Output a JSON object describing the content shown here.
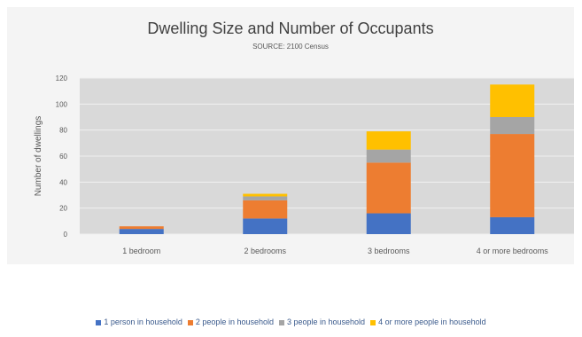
{
  "chart_data": {
    "type": "bar",
    "stacked": true,
    "title": "Dwelling Size and Number of Occupants",
    "subtitle": "SOURCE: 2100 Census",
    "xlabel": "",
    "ylabel": "Number of dwellings",
    "ylim": [
      0,
      120
    ],
    "yticks": [
      0,
      20,
      40,
      60,
      80,
      100,
      120
    ],
    "grid": true,
    "legend_position": "bottom",
    "categories": [
      "1 bedroom",
      "2 bedrooms",
      "3 bedrooms",
      "4 or more bedrooms"
    ],
    "series": [
      {
        "name": "1 person in household",
        "color": "#4472c4",
        "values": [
          4,
          12,
          16,
          13
        ]
      },
      {
        "name": "2 people in household",
        "color": "#ed7d31",
        "values": [
          2,
          14,
          39,
          64
        ]
      },
      {
        "name": "3 people in household",
        "color": "#a5a5a5",
        "values": [
          0,
          3,
          10,
          13
        ]
      },
      {
        "name": "4 or more people in household",
        "color": "#ffc000",
        "values": [
          0,
          2,
          14,
          25
        ]
      }
    ]
  }
}
